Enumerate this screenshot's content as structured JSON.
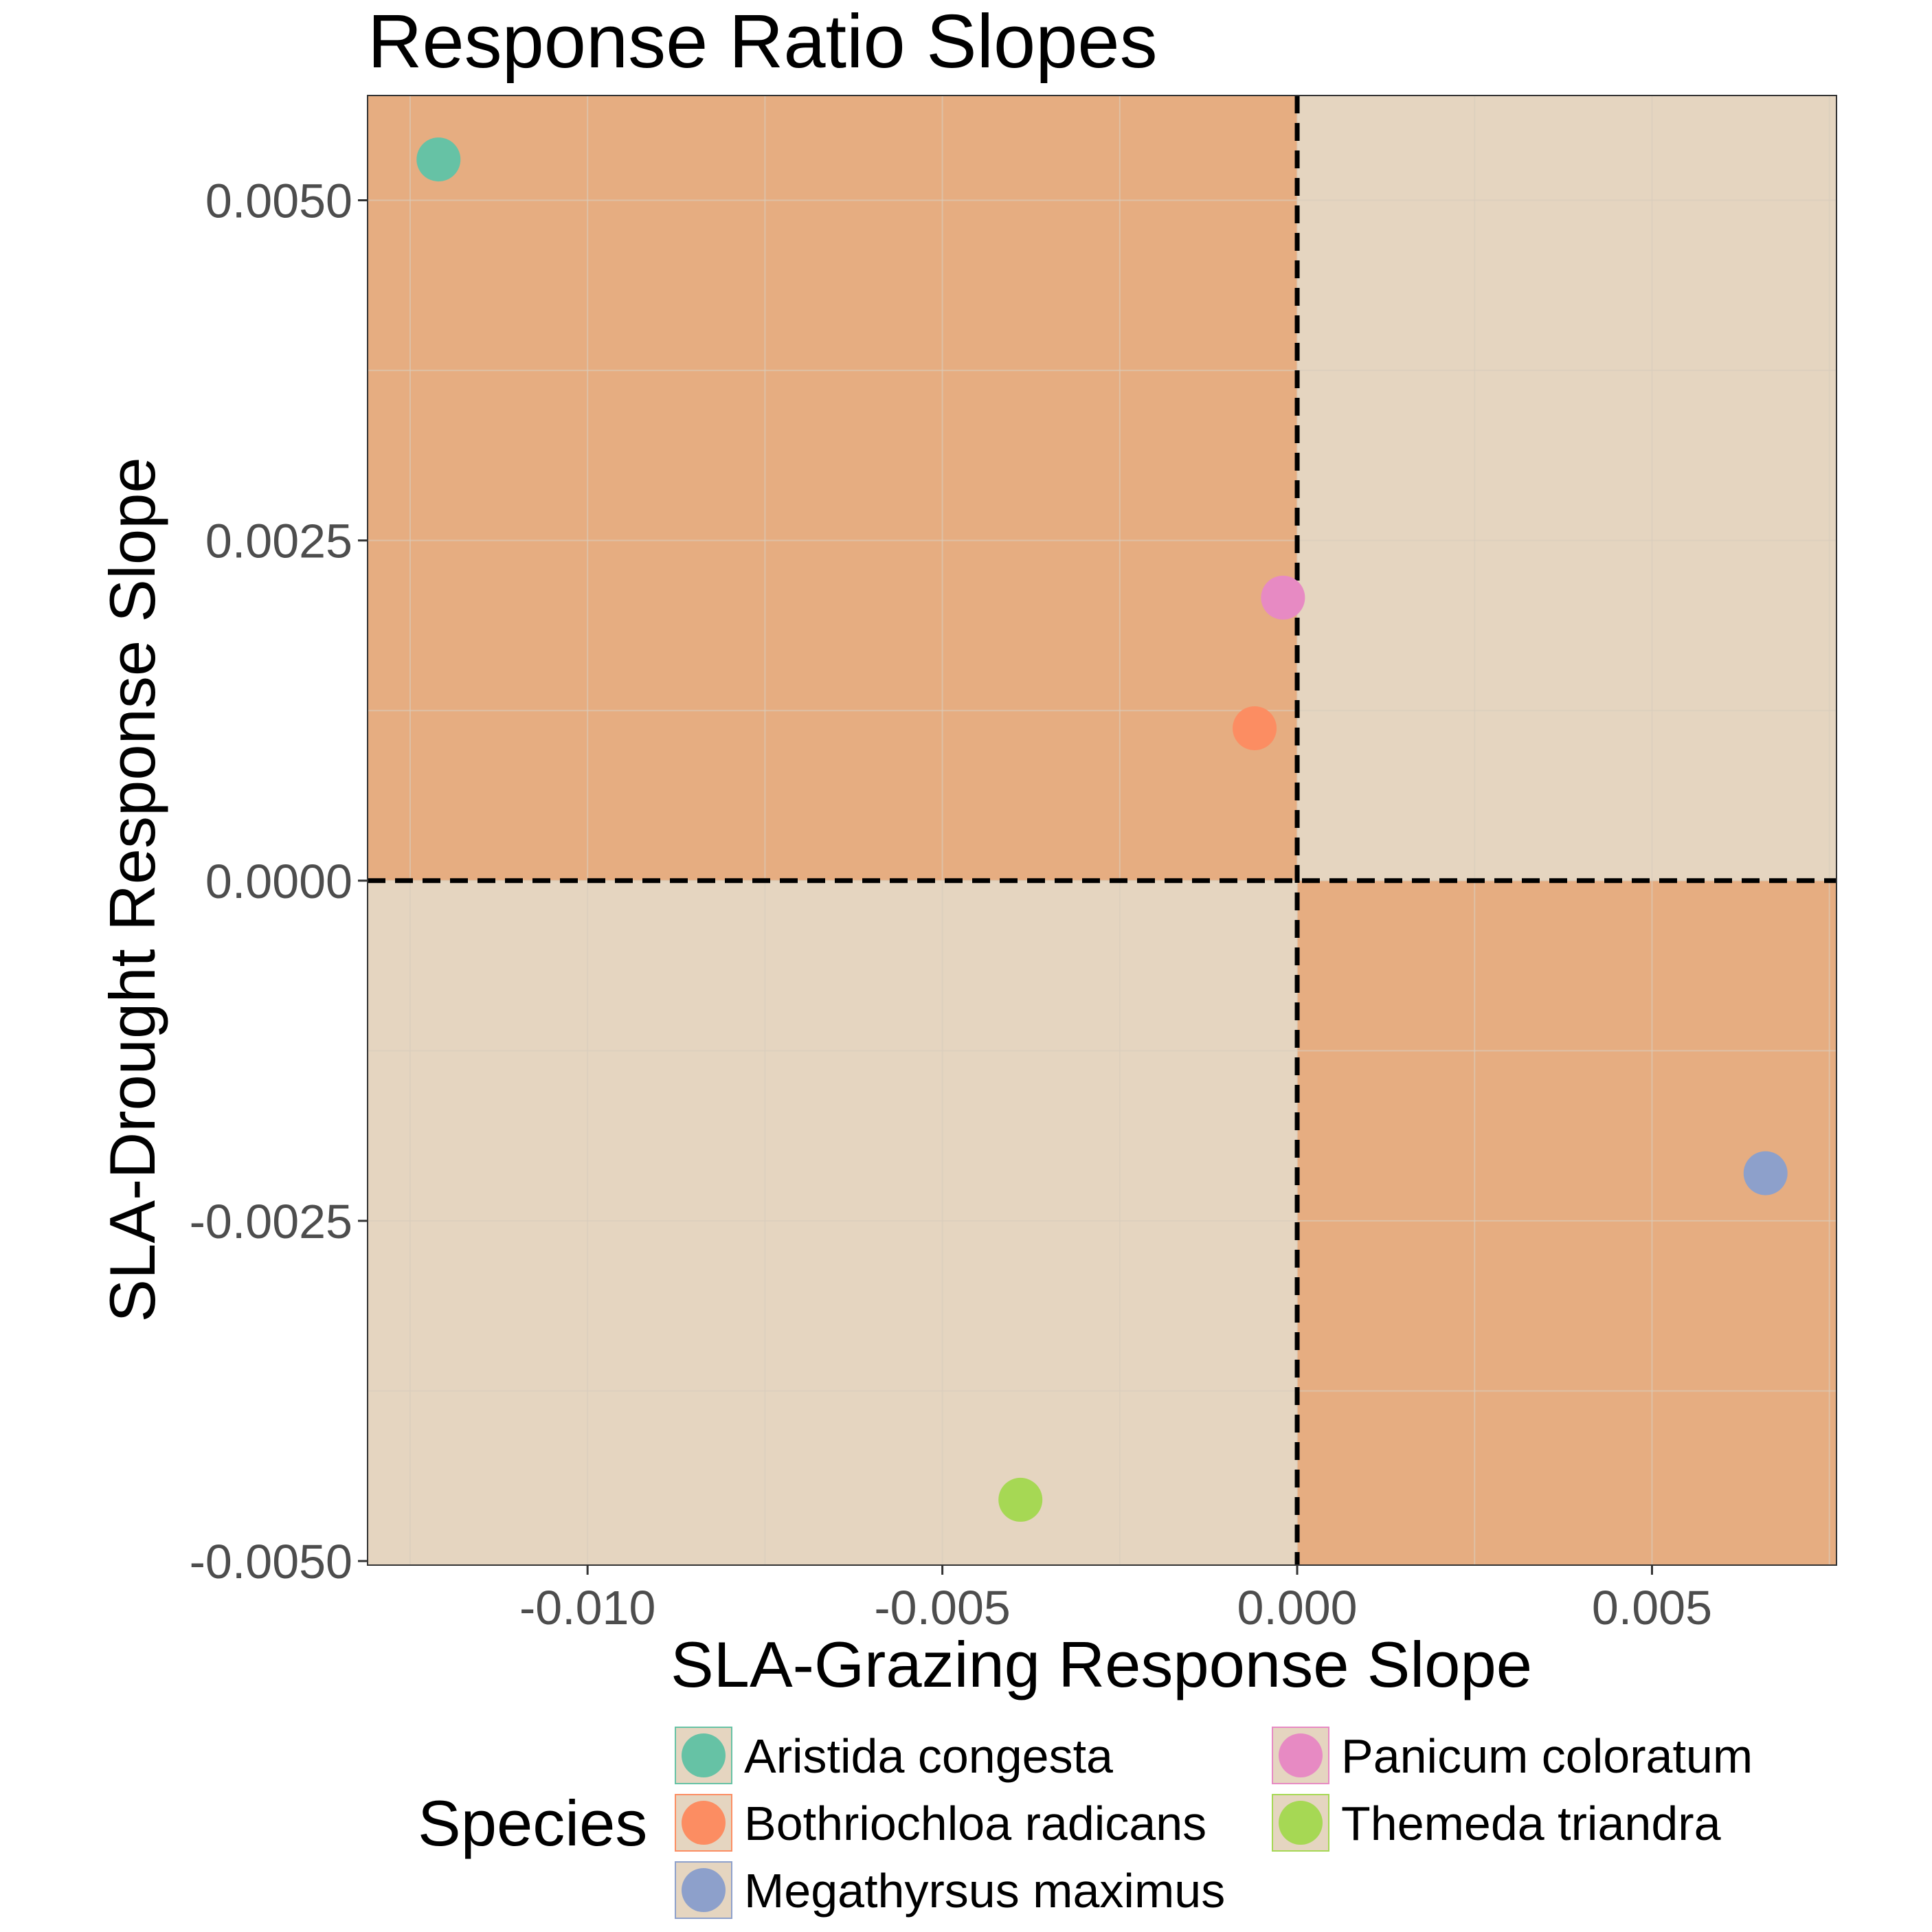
{
  "chart_data": {
    "type": "scatter",
    "title": "Response Ratio Slopes",
    "xlabel": "SLA-Grazing Response Slope",
    "ylabel": "SLA-Drought Response Slope",
    "xlim": [
      -0.0131,
      0.0076
    ],
    "ylim": [
      -0.00503,
      0.00577
    ],
    "x_ticks": [
      -0.01,
      -0.005,
      0.0,
      0.005
    ],
    "x_tick_labels": [
      "-0.010",
      "-0.005",
      "0.000",
      "0.005"
    ],
    "y_ticks": [
      -0.005,
      -0.0025,
      0.0,
      0.0025,
      0.005
    ],
    "y_tick_labels": [
      "-0.0050",
      "-0.0025",
      "0.0000",
      "0.0025",
      "0.0050"
    ],
    "reference_lines": {
      "x": 0,
      "y": 0,
      "style": "dashed"
    },
    "quadrant_colors": {
      "mixed_sign": "#e6ad81",
      "same_sign": "#e5d5c0",
      "grid": "#d9cdbd",
      "reference_line": "#000000"
    },
    "grid": true,
    "legend": {
      "title": "Species",
      "position": "bottom",
      "columns": 2
    },
    "series": [
      {
        "name": "Aristida congesta",
        "color": "#66c2a5",
        "x": -0.0121,
        "y": 0.0053
      },
      {
        "name": "Bothriochloa radicans",
        "color": "#fc8d62",
        "x": -0.0006,
        "y": 0.00112
      },
      {
        "name": "Megathyrsus maximus",
        "color": "#8da0cb",
        "x": 0.0066,
        "y": -0.00215
      },
      {
        "name": "Panicum coloratum",
        "color": "#e78ac3",
        "x": -0.0002,
        "y": 0.00208
      },
      {
        "name": "Themeda triandra",
        "color": "#a6d854",
        "x": -0.0039,
        "y": -0.00455
      }
    ]
  }
}
